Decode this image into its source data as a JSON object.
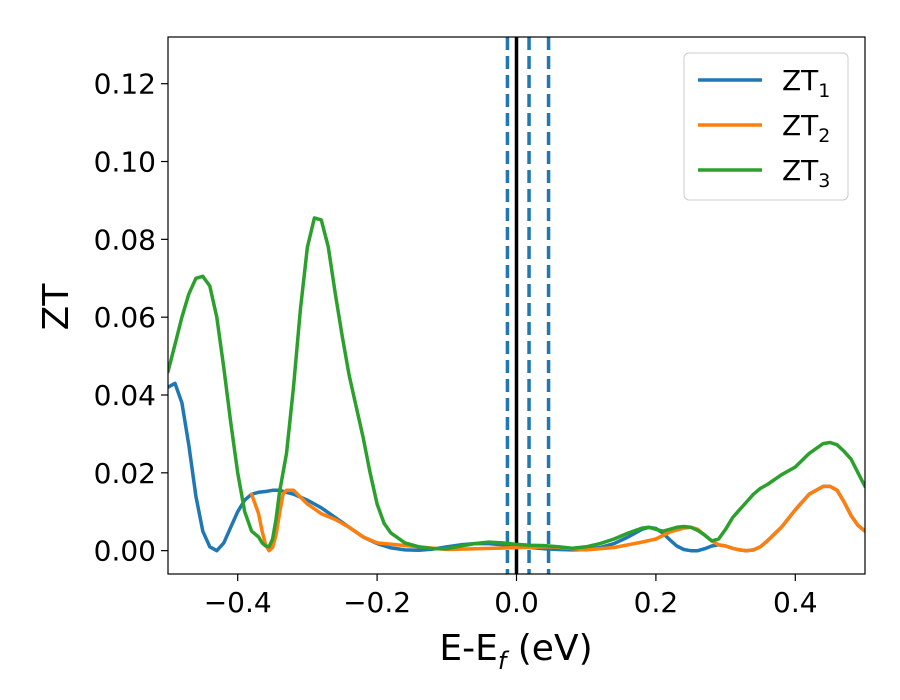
{
  "chart_data": {
    "type": "line",
    "title": "",
    "xlabel": {
      "main": "E-E",
      "sub": "f",
      "suffix": " (eV)"
    },
    "ylabel": "ZT",
    "xlim": [
      -0.5,
      0.5
    ],
    "ylim": [
      -0.006,
      0.132
    ],
    "xticks": [
      -0.4,
      -0.2,
      0.0,
      0.2,
      0.4
    ],
    "xtick_labels": [
      "−0.4",
      "−0.2",
      "0.0",
      "0.2",
      "0.4"
    ],
    "yticks": [
      0.0,
      0.02,
      0.04,
      0.06,
      0.08,
      0.1,
      0.12
    ],
    "ytick_labels": [
      "0.00",
      "0.02",
      "0.04",
      "0.06",
      "0.08",
      "0.10",
      "0.12"
    ],
    "grid": false,
    "legend_position": "top-right",
    "vlines": [
      {
        "x": 0.0,
        "style": "solid",
        "color": "#000000"
      },
      {
        "x": -0.013,
        "style": "dashed",
        "color": "#1f77b4"
      },
      {
        "x": 0.018,
        "style": "dashed",
        "color": "#1f77b4"
      },
      {
        "x": 0.046,
        "style": "dashed",
        "color": "#1f77b4"
      }
    ],
    "series": [
      {
        "name": {
          "main": "ZT",
          "sub": "1"
        },
        "color": "#1f77b4",
        "points": [
          [
            -0.5,
            0.042
          ],
          [
            -0.49,
            0.043
          ],
          [
            -0.48,
            0.038
          ],
          [
            -0.47,
            0.027
          ],
          [
            -0.46,
            0.014
          ],
          [
            -0.45,
            0.005
          ],
          [
            -0.44,
            0.001
          ],
          [
            -0.43,
            0.0
          ],
          [
            -0.42,
            0.002
          ],
          [
            -0.41,
            0.006
          ],
          [
            -0.4,
            0.01
          ],
          [
            -0.39,
            0.013
          ],
          [
            -0.38,
            0.0145
          ],
          [
            -0.37,
            0.015
          ],
          [
            -0.36,
            0.0152
          ],
          [
            -0.35,
            0.0155
          ],
          [
            -0.34,
            0.0155
          ],
          [
            -0.33,
            0.015
          ],
          [
            -0.32,
            0.0145
          ],
          [
            -0.3,
            0.013
          ],
          [
            -0.28,
            0.011
          ],
          [
            -0.26,
            0.0085
          ],
          [
            -0.24,
            0.006
          ],
          [
            -0.22,
            0.0035
          ],
          [
            -0.2,
            0.0018
          ],
          [
            -0.18,
            0.0007
          ],
          [
            -0.16,
            0.0002
          ],
          [
            -0.14,
            0.0001
          ],
          [
            -0.12,
            0.0004
          ],
          [
            -0.1,
            0.001
          ],
          [
            -0.08,
            0.0015
          ],
          [
            -0.06,
            0.0018
          ],
          [
            -0.04,
            0.0018
          ],
          [
            -0.02,
            0.0015
          ],
          [
            0.0,
            0.0012
          ],
          [
            0.02,
            0.0008
          ],
          [
            0.04,
            0.0005
          ],
          [
            0.06,
            0.0003
          ],
          [
            0.08,
            0.0002
          ],
          [
            0.1,
            0.0003
          ],
          [
            0.12,
            0.0008
          ],
          [
            0.14,
            0.0018
          ],
          [
            0.16,
            0.0035
          ],
          [
            0.18,
            0.0055
          ],
          [
            0.19,
            0.006
          ],
          [
            0.2,
            0.0057
          ],
          [
            0.21,
            0.0045
          ],
          [
            0.22,
            0.0028
          ],
          [
            0.23,
            0.0012
          ],
          [
            0.24,
            0.0003
          ],
          [
            0.25,
            0.0
          ],
          [
            0.26,
            0.0
          ],
          [
            0.27,
            0.0005
          ],
          [
            0.28,
            0.0012
          ],
          [
            0.29,
            0.0015
          ],
          [
            0.3,
            0.0012
          ],
          [
            0.31,
            0.0006
          ],
          [
            0.32,
            0.0002
          ],
          [
            0.33,
            0.0
          ],
          [
            0.34,
            0.0002
          ],
          [
            0.35,
            0.001
          ],
          [
            0.36,
            0.0025
          ],
          [
            0.38,
            0.006
          ],
          [
            0.4,
            0.0105
          ],
          [
            0.42,
            0.0145
          ],
          [
            0.44,
            0.0165
          ],
          [
            0.45,
            0.0165
          ],
          [
            0.46,
            0.0155
          ],
          [
            0.47,
            0.0125
          ],
          [
            0.48,
            0.009
          ],
          [
            0.49,
            0.0065
          ],
          [
            0.5,
            0.005
          ]
        ]
      },
      {
        "name": {
          "main": "ZT",
          "sub": "2"
        },
        "color": "#ff7f0e",
        "points": [
          [
            -0.38,
            0.0145
          ],
          [
            -0.37,
            0.0095
          ],
          [
            -0.365,
            0.005
          ],
          [
            -0.36,
            0.0015
          ],
          [
            -0.355,
            0.0
          ],
          [
            -0.35,
            0.0008
          ],
          [
            -0.345,
            0.004
          ],
          [
            -0.34,
            0.0095
          ],
          [
            -0.335,
            0.0145
          ],
          [
            -0.33,
            0.0155
          ],
          [
            -0.32,
            0.0155
          ],
          [
            -0.3,
            0.012
          ],
          [
            -0.28,
            0.0095
          ],
          [
            -0.26,
            0.008
          ],
          [
            -0.24,
            0.006
          ],
          [
            -0.22,
            0.0035
          ],
          [
            -0.2,
            0.002
          ],
          [
            -0.1,
            0.0003
          ],
          [
            0.05,
            0.001
          ],
          [
            0.1,
            0.0002
          ],
          [
            0.14,
            0.0008
          ],
          [
            0.18,
            0.0022
          ],
          [
            0.2,
            0.003
          ],
          [
            0.22,
            0.0048
          ],
          [
            0.24,
            0.0058
          ],
          [
            0.25,
            0.006
          ],
          [
            0.26,
            0.0055
          ],
          [
            0.27,
            0.004
          ],
          [
            0.28,
            0.0025
          ],
          [
            0.29,
            0.0015
          ],
          [
            0.3,
            0.0012
          ],
          [
            0.31,
            0.0006
          ],
          [
            0.32,
            0.0002
          ],
          [
            0.33,
            0.0
          ],
          [
            0.34,
            0.0002
          ],
          [
            0.35,
            0.001
          ],
          [
            0.36,
            0.0025
          ],
          [
            0.38,
            0.006
          ],
          [
            0.4,
            0.0105
          ],
          [
            0.42,
            0.0145
          ],
          [
            0.44,
            0.0165
          ],
          [
            0.45,
            0.0165
          ],
          [
            0.46,
            0.0155
          ],
          [
            0.47,
            0.0125
          ],
          [
            0.48,
            0.009
          ],
          [
            0.49,
            0.0065
          ],
          [
            0.5,
            0.005
          ]
        ]
      },
      {
        "name": {
          "main": "ZT",
          "sub": "3"
        },
        "color": "#2ca02c",
        "points": [
          [
            -0.5,
            0.046
          ],
          [
            -0.49,
            0.053
          ],
          [
            -0.48,
            0.06
          ],
          [
            -0.47,
            0.066
          ],
          [
            -0.46,
            0.07
          ],
          [
            -0.45,
            0.0705
          ],
          [
            -0.44,
            0.068
          ],
          [
            -0.43,
            0.06
          ],
          [
            -0.42,
            0.047
          ],
          [
            -0.41,
            0.033
          ],
          [
            -0.4,
            0.02
          ],
          [
            -0.39,
            0.01
          ],
          [
            -0.38,
            0.005
          ],
          [
            -0.37,
            0.0035
          ],
          [
            -0.365,
            0.002
          ],
          [
            -0.36,
            0.0012
          ],
          [
            -0.355,
            0.001
          ],
          [
            -0.35,
            0.003
          ],
          [
            -0.345,
            0.008
          ],
          [
            -0.34,
            0.015
          ],
          [
            -0.33,
            0.025
          ],
          [
            -0.32,
            0.042
          ],
          [
            -0.31,
            0.062
          ],
          [
            -0.3,
            0.078
          ],
          [
            -0.29,
            0.0855
          ],
          [
            -0.28,
            0.085
          ],
          [
            -0.27,
            0.078
          ],
          [
            -0.26,
            0.066
          ],
          [
            -0.25,
            0.055
          ],
          [
            -0.24,
            0.045
          ],
          [
            -0.23,
            0.037
          ],
          [
            -0.22,
            0.029
          ],
          [
            -0.21,
            0.02
          ],
          [
            -0.2,
            0.012
          ],
          [
            -0.19,
            0.007
          ],
          [
            -0.18,
            0.0045
          ],
          [
            -0.16,
            0.002
          ],
          [
            -0.14,
            0.001
          ],
          [
            -0.12,
            0.0005
          ],
          [
            -0.1,
            0.0005
          ],
          [
            -0.08,
            0.0012
          ],
          [
            -0.06,
            0.0018
          ],
          [
            -0.04,
            0.0022
          ],
          [
            -0.02,
            0.002
          ],
          [
            0.0,
            0.0016
          ],
          [
            0.02,
            0.0014
          ],
          [
            0.04,
            0.0013
          ],
          [
            0.06,
            0.001
          ],
          [
            0.08,
            0.0006
          ],
          [
            0.1,
            0.001
          ],
          [
            0.12,
            0.0018
          ],
          [
            0.14,
            0.003
          ],
          [
            0.16,
            0.0045
          ],
          [
            0.18,
            0.0058
          ],
          [
            0.19,
            0.006
          ],
          [
            0.2,
            0.0055
          ],
          [
            0.21,
            0.005
          ],
          [
            0.22,
            0.0055
          ],
          [
            0.23,
            0.006
          ],
          [
            0.24,
            0.0062
          ],
          [
            0.25,
            0.006
          ],
          [
            0.26,
            0.0052
          ],
          [
            0.27,
            0.004
          ],
          [
            0.28,
            0.0025
          ],
          [
            0.29,
            0.003
          ],
          [
            0.3,
            0.0055
          ],
          [
            0.31,
            0.0085
          ],
          [
            0.32,
            0.0105
          ],
          [
            0.33,
            0.0125
          ],
          [
            0.34,
            0.0145
          ],
          [
            0.35,
            0.016
          ],
          [
            0.36,
            0.017
          ],
          [
            0.38,
            0.0195
          ],
          [
            0.4,
            0.0215
          ],
          [
            0.42,
            0.025
          ],
          [
            0.44,
            0.0275
          ],
          [
            0.45,
            0.0278
          ],
          [
            0.46,
            0.0272
          ],
          [
            0.47,
            0.0255
          ],
          [
            0.48,
            0.0235
          ],
          [
            0.49,
            0.02
          ],
          [
            0.5,
            0.0165
          ]
        ]
      }
    ]
  }
}
